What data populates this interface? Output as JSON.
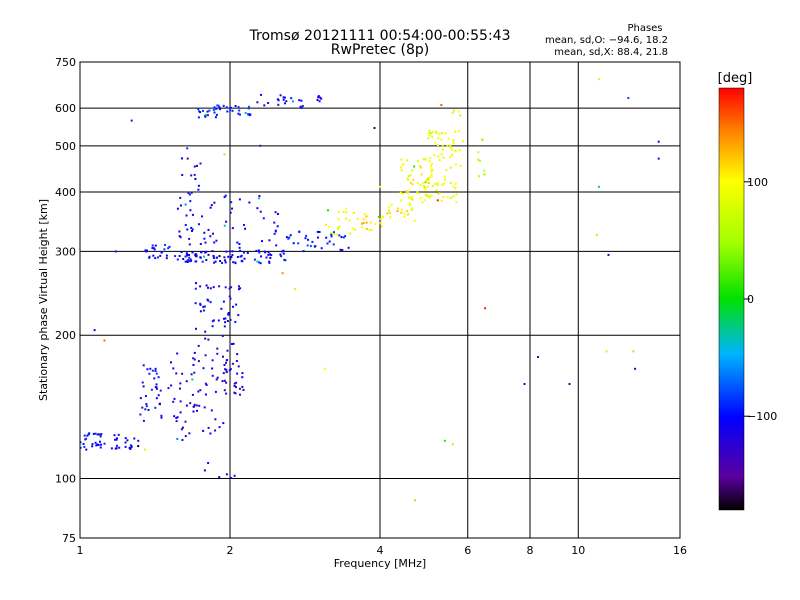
{
  "header": {
    "title": "Tromsø 20121111 00:54:00-00:55:43",
    "subtitle": "RwPretec (8p)"
  },
  "stats": {
    "heading": "Phases",
    "line_o": "mean, sd,O: −94.6, 18.2",
    "line_x": "mean, sd,X:  88.4, 21.8"
  },
  "colorbar": {
    "unit_label": "[deg]",
    "ticks": [
      100,
      0,
      -100
    ],
    "range": [
      -180,
      180
    ]
  },
  "chart_data": {
    "type": "scatter",
    "xlabel": "Frequency [MHz]",
    "ylabel": "Stationary phase Virtual Height [km]",
    "xscale": "log",
    "yscale": "log",
    "xlim": [
      1,
      16
    ],
    "ylim": [
      75,
      750
    ],
    "xticks": [
      1,
      2,
      4,
      6,
      8,
      10,
      16
    ],
    "yticks": [
      75,
      100,
      200,
      300,
      400,
      500,
      600,
      750
    ],
    "grid": true,
    "color_by": "phase (deg)",
    "groups": [
      {
        "x": [
          1.0,
          1.12
        ],
        "y": [
          115,
          125
        ],
        "phase": -95,
        "n": 30
      },
      {
        "x": [
          1.14,
          1.32
        ],
        "y": [
          115,
          124
        ],
        "phase": -110,
        "n": 22
      },
      {
        "x": [
          1.32,
          1.46
        ],
        "y": [
          130,
          175
        ],
        "phase": -105,
        "n": 35
      },
      {
        "x": [
          1.5,
          1.95
        ],
        "y": [
          120,
          185
        ],
        "phase": -115,
        "n": 70
      },
      {
        "x": [
          1.7,
          2.1
        ],
        "y": [
          185,
          260
        ],
        "phase": -110,
        "n": 55
      },
      {
        "x": [
          1.95,
          2.15
        ],
        "y": [
          150,
          185
        ],
        "phase": -120,
        "n": 30
      },
      {
        "x": [
          1.35,
          1.52
        ],
        "y": [
          290,
          310
        ],
        "phase": -100,
        "n": 22
      },
      {
        "x": [
          1.55,
          1.8
        ],
        "y": [
          285,
          300
        ],
        "phase": -105,
        "n": 35
      },
      {
        "x": [
          1.8,
          2.6
        ],
        "y": [
          283,
          302
        ],
        "phase": -105,
        "n": 60
      },
      {
        "x": [
          2.6,
          3.5
        ],
        "y": [
          300,
          330
        ],
        "phase": -95,
        "n": 35
      },
      {
        "x": [
          1.55,
          1.9
        ],
        "y": [
          310,
          400
        ],
        "phase": -110,
        "n": 35
      },
      {
        "x": [
          1.95,
          2.5
        ],
        "y": [
          300,
          400
        ],
        "phase": -110,
        "n": 30
      },
      {
        "x": [
          1.6,
          1.75
        ],
        "y": [
          400,
          500
        ],
        "phase": -118,
        "n": 12
      },
      {
        "x": [
          3.0,
          3.6
        ],
        "y": [
          325,
          370
        ],
        "phase": 90,
        "n": 20
      },
      {
        "x": [
          3.6,
          4.1
        ],
        "y": [
          330,
          360
        ],
        "phase": 110,
        "n": 20
      },
      {
        "x": [
          4.1,
          4.7
        ],
        "y": [
          345,
          380
        ],
        "phase": 105,
        "n": 20
      },
      {
        "x": [
          4.4,
          5.1
        ],
        "y": [
          380,
          470
        ],
        "phase": 95,
        "n": 60
      },
      {
        "x": [
          5.0,
          5.7
        ],
        "y": [
          380,
          540
        ],
        "phase": 90,
        "n": 60
      },
      {
        "x": [
          5.2,
          5.9
        ],
        "y": [
          400,
          630
        ],
        "phase": 95,
        "n": 20
      },
      {
        "x": [
          1.72,
          1.9
        ],
        "y": [
          570,
          600
        ],
        "phase": -100,
        "n": 15
      },
      {
        "x": [
          1.85,
          2.2
        ],
        "y": [
          580,
          610
        ],
        "phase": -95,
        "n": 25
      },
      {
        "x": [
          2.2,
          2.8
        ],
        "y": [
          600,
          640
        ],
        "phase": -110,
        "n": 20
      },
      {
        "x": [
          2.9,
          3.1
        ],
        "y": [
          620,
          640
        ],
        "phase": -115,
        "n": 6
      },
      {
        "x": [
          6.3,
          6.6
        ],
        "y": [
          430,
          520
        ],
        "phase": 60,
        "n": 8
      },
      {
        "x": [
          1.78,
          2.05
        ],
        "y": [
          100,
          108
        ],
        "phase": -110,
        "n": 6
      }
    ],
    "points": [
      {
        "x": 1.27,
        "y": 565,
        "phase": -150
      },
      {
        "x": 1.18,
        "y": 300,
        "phase": -95
      },
      {
        "x": 1.07,
        "y": 205,
        "phase": -110
      },
      {
        "x": 1.12,
        "y": 195,
        "phase": 150
      },
      {
        "x": 2.55,
        "y": 270,
        "phase": 140
      },
      {
        "x": 2.7,
        "y": 250,
        "phase": 110
      },
      {
        "x": 3.1,
        "y": 170,
        "phase": 100
      },
      {
        "x": 4.0,
        "y": 410,
        "phase": 100
      },
      {
        "x": 3.9,
        "y": 545,
        "phase": -160
      },
      {
        "x": 6.5,
        "y": 228,
        "phase": 170
      },
      {
        "x": 5.4,
        "y": 120,
        "phase": 10
      },
      {
        "x": 5.6,
        "y": 118,
        "phase": 115
      },
      {
        "x": 4.7,
        "y": 90,
        "phase": 40
      },
      {
        "x": 7.8,
        "y": 158,
        "phase": -120
      },
      {
        "x": 8.3,
        "y": 180,
        "phase": -130
      },
      {
        "x": 9.6,
        "y": 158,
        "phase": -125
      },
      {
        "x": 11.0,
        "y": 690,
        "phase": 110
      },
      {
        "x": 11.0,
        "y": 410,
        "phase": -10
      },
      {
        "x": 10.9,
        "y": 325,
        "phase": 115
      },
      {
        "x": 11.5,
        "y": 295,
        "phase": -105
      },
      {
        "x": 12.6,
        "y": 630,
        "phase": -80
      },
      {
        "x": 14.5,
        "y": 510,
        "phase": -110
      },
      {
        "x": 14.5,
        "y": 470,
        "phase": -115
      },
      {
        "x": 11.4,
        "y": 185,
        "phase": 110
      },
      {
        "x": 12.9,
        "y": 185,
        "phase": 120
      },
      {
        "x": 13.0,
        "y": 170,
        "phase": -120
      },
      {
        "x": 2.3,
        "y": 500,
        "phase": -150
      },
      {
        "x": 1.95,
        "y": 480,
        "phase": 120
      },
      {
        "x": 1.35,
        "y": 115,
        "phase": 110
      }
    ]
  }
}
